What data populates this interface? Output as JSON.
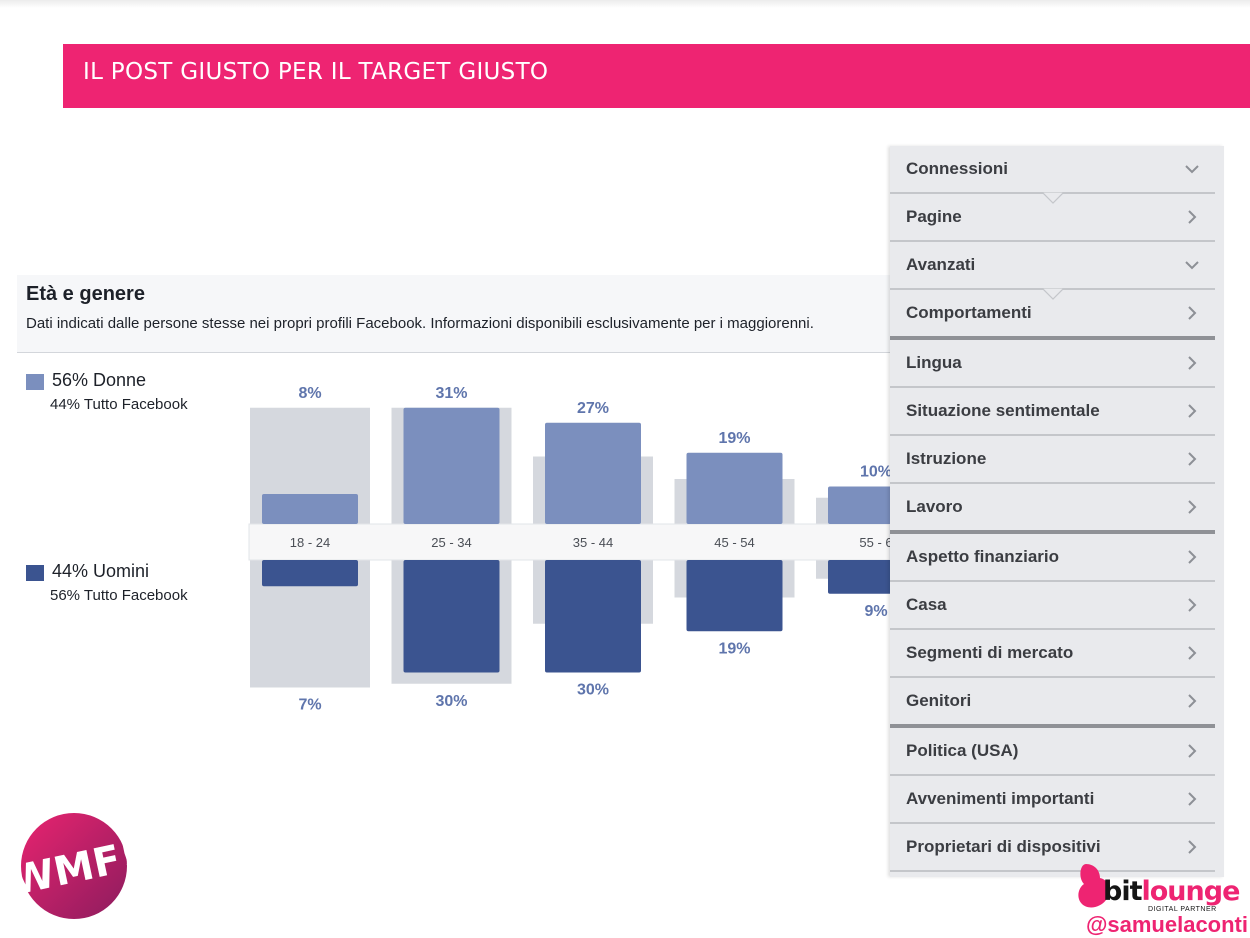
{
  "banner": {
    "title": "IL POST GIUSTO PER IL TARGET GIUSTO",
    "color": "#ee2472"
  },
  "panel": {
    "title": "Età e genere",
    "subtitle": "Dati indicati dalle persone stesse nei propri profili Facebook. Informazioni disponibili esclusivamente per i maggiorenni."
  },
  "legend": {
    "women": {
      "label": "56% Donne",
      "sub": "44% Tutto Facebook",
      "color": "#7b8fbe"
    },
    "men": {
      "label": "44% Uomini",
      "sub": "56% Tutto Facebook",
      "color": "#3b5490"
    }
  },
  "chart_data": {
    "type": "bar",
    "categories": [
      "18 - 24",
      "25 - 34",
      "35 - 44",
      "45 - 54",
      "55 - 6"
    ],
    "series": [
      {
        "name": "56% Donne",
        "values": [
          8,
          31,
          27,
          19,
          10
        ],
        "labels": [
          "8%",
          "31%",
          "27%",
          "19%",
          "10%"
        ],
        "color": "#7b8fbe",
        "benchmark": [
          31,
          31,
          18,
          12,
          7
        ]
      },
      {
        "name": "44% Uomini",
        "values": [
          7,
          30,
          30,
          19,
          9
        ],
        "labels": [
          "7%",
          "30%",
          "30%",
          "19%",
          "9%"
        ],
        "color": "#3b5490",
        "benchmark": [
          34,
          33,
          17,
          10,
          5
        ]
      }
    ],
    "benchmark_color": "#d5d8de",
    "layout": "diverging"
  },
  "sidebar": {
    "items": [
      {
        "label": "Connessioni",
        "icon": "chevron-down-icon",
        "expanded": true,
        "notch": true
      },
      {
        "label": "Pagine",
        "icon": "chevron-right-icon"
      },
      {
        "label": "Avanzati",
        "icon": "chevron-down-icon",
        "expanded": true,
        "notch": true
      },
      {
        "label": "Comportamenti",
        "icon": "chevron-right-icon",
        "thick": true
      },
      {
        "label": "Lingua",
        "icon": "chevron-right-icon"
      },
      {
        "label": "Situazione sentimentale",
        "icon": "chevron-right-icon"
      },
      {
        "label": "Istruzione",
        "icon": "chevron-right-icon"
      },
      {
        "label": "Lavoro",
        "icon": "chevron-right-icon",
        "thick": true
      },
      {
        "label": "Aspetto finanziario",
        "icon": "chevron-right-icon"
      },
      {
        "label": "Casa",
        "icon": "chevron-right-icon"
      },
      {
        "label": "Segmenti di mercato",
        "icon": "chevron-right-icon"
      },
      {
        "label": "Genitori",
        "icon": "chevron-right-icon",
        "thick": true
      },
      {
        "label": "Politica (USA)",
        "icon": "chevron-right-icon"
      },
      {
        "label": "Avvenimenti importanti",
        "icon": "chevron-right-icon"
      },
      {
        "label": "Proprietari di dispositivi",
        "icon": "chevron-right-icon"
      }
    ]
  },
  "logo_left": {
    "text": "WMF!"
  },
  "brand": {
    "name_a": "bit",
    "name_b": "lounge",
    "tagline": "DIGITAL PARTNER",
    "handle": "@samuelaconti",
    "color": "#ee2472"
  }
}
